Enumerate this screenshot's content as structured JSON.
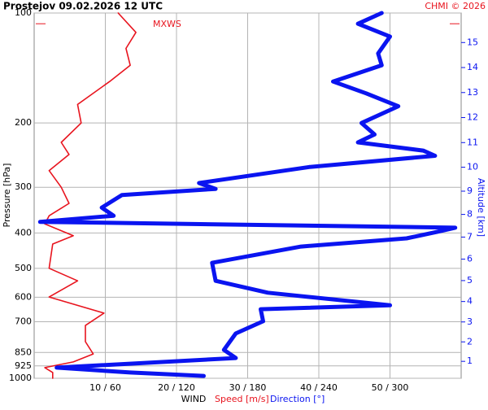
{
  "chart_data": {
    "type": "profile",
    "title": "Prostejov    09.02.2026 12 UTC",
    "credit": "CHMI © 2026",
    "y_label": "Pressure [hPa]",
    "y2_label": "Altitude [km]",
    "x_label": "WIND",
    "log_y": true,
    "grid": true,
    "ylim": [
      1000,
      100
    ],
    "yticks": [
      100,
      200,
      300,
      400,
      500,
      600,
      700,
      850,
      925,
      1000
    ],
    "xlim": [
      0,
      60
    ],
    "x2lim": [
      0,
      360
    ],
    "xticks": [
      {
        "value": 10,
        "label": "10 / 60"
      },
      {
        "value": 20,
        "label": "20 / 120"
      },
      {
        "value": 30,
        "label": "30 / 180"
      },
      {
        "value": 40,
        "label": "40 / 240"
      },
      {
        "value": 50,
        "label": "50 / 300"
      }
    ],
    "y2ticks": [
      1,
      2,
      3,
      4,
      5,
      6,
      7,
      8,
      9,
      10,
      11,
      12,
      13,
      14,
      15
    ],
    "mxws": {
      "label": "MXWS",
      "pressure": 107
    },
    "series": [
      {
        "name": "Speed [m/s]",
        "color": "#e8141e",
        "axis": "x",
        "pressure": [
          100,
          113,
          125,
          139,
          154,
          178,
          200,
          226,
          244,
          270,
          300,
          332,
          359,
          378,
          407,
          429,
          500,
          541,
          599,
          663,
          717,
          794,
          858,
          902,
          935,
          964,
          1000
        ],
        "values": [
          11.8,
          14.3,
          12.9,
          13.5,
          10.6,
          6.1,
          6.6,
          3.8,
          4.9,
          2.1,
          3.8,
          4.9,
          2.1,
          1.5,
          5.5,
          2.6,
          2.1,
          6.1,
          2.1,
          9.8,
          7.2,
          7.2,
          8.3,
          5.5,
          1.5,
          2.6,
          2.6
        ]
      },
      {
        "name": "Direction [°]",
        "color": "#0a14f0",
        "axis": "x2",
        "pressure": [
          100,
          107,
          116,
          129,
          139,
          154,
          166,
          180,
          200,
          215,
          226,
          238,
          246,
          264,
          292,
          303,
          315,
          341,
          359,
          373,
          387,
          397,
          414,
          436,
          483,
          541,
          583,
          631,
          647,
          698,
          754,
          836,
          880,
          935,
          964,
          985
        ],
        "values": [
          293,
          273,
          300,
          290,
          293,
          252,
          280,
          307,
          276,
          287,
          273,
          328,
          338,
          232,
          139,
          153,
          74,
          57,
          67,
          5,
          355,
          340,
          314,
          225,
          150,
          153,
          197,
          300,
          191,
          193,
          170,
          160,
          170,
          19,
          81,
          143
        ]
      }
    ]
  }
}
